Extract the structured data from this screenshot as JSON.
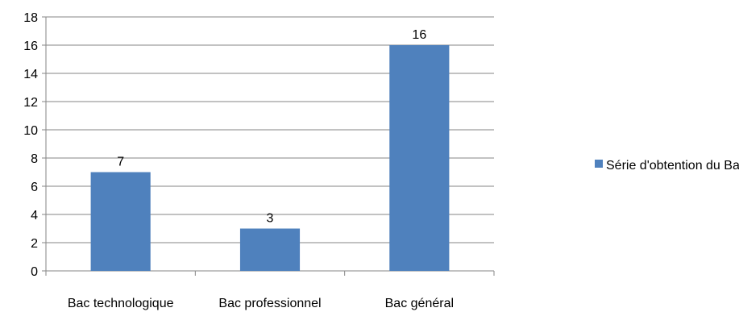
{
  "chart_data": {
    "type": "bar",
    "categories": [
      "Bac technologique",
      "Bac professionnel",
      "Bac général"
    ],
    "series": [
      {
        "name": "Série d'obtention du Bac",
        "values": [
          7,
          3,
          16
        ],
        "color": "#4F81BD"
      }
    ],
    "data_labels": [
      "7",
      "3",
      "16"
    ],
    "ylim": [
      0,
      18
    ],
    "y_ticks": [
      0,
      2,
      4,
      6,
      8,
      10,
      12,
      14,
      16,
      18
    ],
    "grid": true,
    "grid_color": "#868686",
    "legend_position": "right",
    "title": "",
    "xlabel": "",
    "ylabel": ""
  }
}
